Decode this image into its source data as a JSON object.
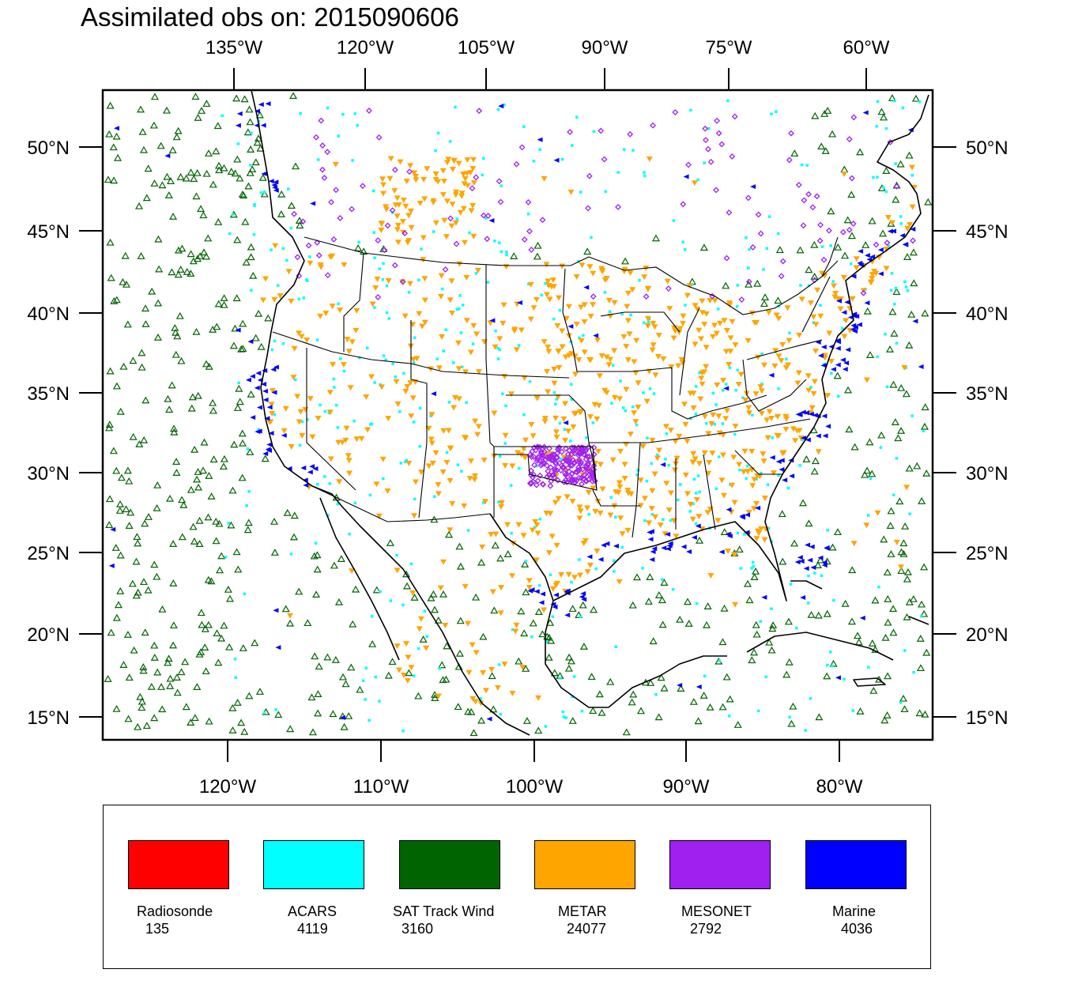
{
  "title": "Assimilated obs on: 2015090606",
  "axes": {
    "top_ticks": [
      "135°W",
      "120°W",
      "105°W",
      "90°W",
      "75°W",
      "60°W"
    ],
    "bottom_ticks": [
      "120°W",
      "110°W",
      "100°W",
      "90°W",
      "80°W"
    ],
    "lat_ticks": [
      "50°N",
      "45°N",
      "40°N",
      "35°N",
      "30°N",
      "25°N",
      "20°N",
      "15°N"
    ]
  },
  "colors": {
    "radiosonde": "#ff0000",
    "acars": "#00ffff",
    "sat_track_wind": "#006400",
    "metar": "#ffa500",
    "mesonet": "#a020f0",
    "marine": "#0000ff"
  },
  "legend": [
    {
      "name": "Radiosonde",
      "count": "135",
      "color": "#ff0000"
    },
    {
      "name": "ACARS",
      "count": "4119",
      "color": "#00ffff"
    },
    {
      "name": "SAT Track Wind",
      "count": "3160",
      "color": "#006400"
    },
    {
      "name": "METAR",
      "count": "24077",
      "color": "#ffa500"
    },
    {
      "name": "MESONET",
      "count": "2792",
      "color": "#a020f0"
    },
    {
      "name": "Marine",
      "count": "4036",
      "color": "#0000ff"
    }
  ]
}
